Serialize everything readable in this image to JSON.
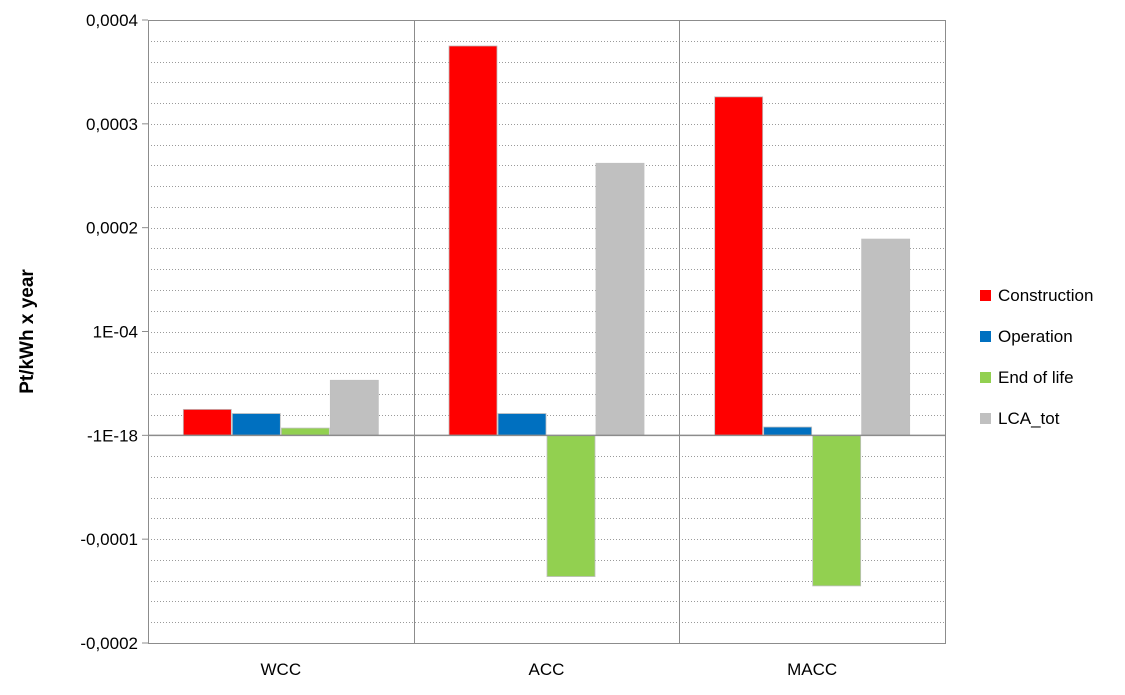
{
  "chart_data": {
    "type": "bar",
    "categories": [
      "WCC",
      "ACC",
      "MACC"
    ],
    "series": [
      {
        "name": "Construction",
        "color": "#ff0000",
        "values": [
          2.5e-05,
          0.000375,
          0.000326
        ]
      },
      {
        "name": "Operation",
        "color": "#0070c0",
        "values": [
          2.1e-05,
          2.1e-05,
          8e-06
        ]
      },
      {
        "name": "End of life",
        "color": "#92d050",
        "values": [
          7e-06,
          -0.000136,
          -0.000145
        ]
      },
      {
        "name": "LCA_tot",
        "color": "#c0c0c0",
        "values": [
          5.3e-05,
          0.000262,
          0.000189
        ]
      }
    ],
    "ylabel": "Pt/kWh x year",
    "ylim": [
      -0.0002,
      0.0004
    ],
    "yticks": [
      {
        "value": 0.0004,
        "label": "0,0004"
      },
      {
        "value": 0.0003,
        "label": "0,0003"
      },
      {
        "value": 0.0002,
        "label": "0,0002"
      },
      {
        "value": 0.0001,
        "label": "1E-04"
      },
      {
        "value": 0,
        "label": "-1E-18"
      },
      {
        "value": -0.0001,
        "label": "-0,0001"
      },
      {
        "value": -0.0002,
        "label": "-0,0002"
      }
    ],
    "minor_grid": true,
    "legend_position": "right"
  }
}
